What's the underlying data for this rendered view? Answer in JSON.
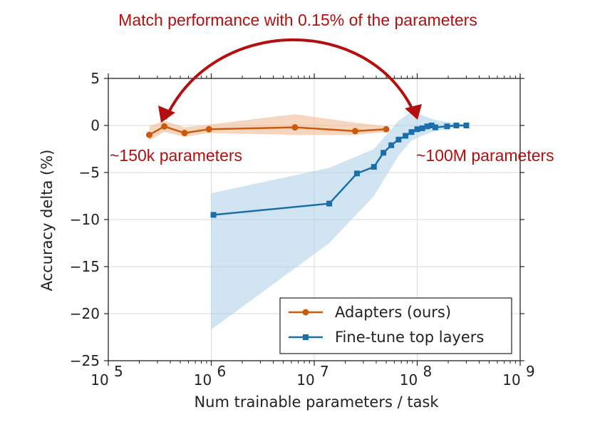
{
  "chart_data": {
    "type": "line",
    "title": "",
    "xlabel": "Num trainable parameters / task",
    "ylabel": "Accuracy delta (%)",
    "xscale": "log",
    "xlim": [
      100000,
      1000000000
    ],
    "ylim": [
      -25,
      5
    ],
    "x_ticks": [
      {
        "value": 100000,
        "base": "10",
        "exp": "5"
      },
      {
        "value": 1000000,
        "base": "10",
        "exp": "6"
      },
      {
        "value": 10000000,
        "base": "10",
        "exp": "7"
      },
      {
        "value": 100000000,
        "base": "10",
        "exp": "8"
      },
      {
        "value": 1000000000,
        "base": "10",
        "exp": "9"
      }
    ],
    "y_ticks": [
      {
        "value": 5,
        "label": "5"
      },
      {
        "value": 0,
        "label": "0"
      },
      {
        "value": -5,
        "label": "−5"
      },
      {
        "value": -10,
        "label": "−10"
      },
      {
        "value": -15,
        "label": "−15"
      },
      {
        "value": -20,
        "label": "−20"
      },
      {
        "value": -25,
        "label": "−25"
      }
    ],
    "grid": true,
    "legend_position": "bottom-right",
    "annotations": {
      "headline": "Match performance with 0.15% of the parameters",
      "left": "~150k parameters",
      "right": "~100M parameters"
    },
    "series": [
      {
        "name": "Adapters (ours)",
        "color": "#cc5a0c",
        "band_color": "#f0b48a",
        "marker": "circle",
        "x": [
          250000,
          350000,
          550000,
          950000,
          6500000,
          25000000,
          50000000
        ],
        "y": [
          -1.0,
          -0.1,
          -0.8,
          -0.4,
          -0.2,
          -0.6,
          -0.4
        ],
        "band_x": [
          250000,
          350000,
          550000,
          950000,
          6500000,
          25000000,
          50000000
        ],
        "band_upper": [
          -0.1,
          0.5,
          -0.2,
          0.1,
          1.2,
          0.3,
          -0.1
        ],
        "band_lower": [
          -1.6,
          -0.7,
          -1.2,
          -0.8,
          -1.0,
          -1.0,
          -0.7
        ]
      },
      {
        "name": "Fine-tune top layers",
        "color": "#1a6faa",
        "band_color": "#a9cfe6",
        "marker": "square",
        "x": [
          1050000,
          14000000,
          26000000,
          38000000,
          47000000,
          56000000,
          66000000,
          77000000,
          88000000,
          100000000,
          112000000,
          125000000,
          138000000,
          150000000,
          195000000,
          240000000,
          300000000
        ],
        "y": [
          -9.5,
          -8.3,
          -5.1,
          -4.4,
          -2.9,
          -2.1,
          -1.5,
          -1.1,
          -0.7,
          -0.4,
          -0.3,
          -0.1,
          0.0,
          -0.2,
          -0.1,
          0.0,
          0.0
        ],
        "band_x": [
          1000000,
          14000000,
          38000000,
          66000000,
          88000000,
          110000000,
          150000000,
          240000000,
          300000000
        ],
        "band_upper": [
          -7.2,
          -4.5,
          -2.5,
          0.5,
          1.5,
          1.1,
          0.6,
          0.2,
          0.1
        ],
        "band_lower": [
          -21.7,
          -12.5,
          -7.5,
          -3.2,
          -1.6,
          -1.1,
          -0.6,
          -0.2,
          -0.1
        ]
      }
    ]
  }
}
